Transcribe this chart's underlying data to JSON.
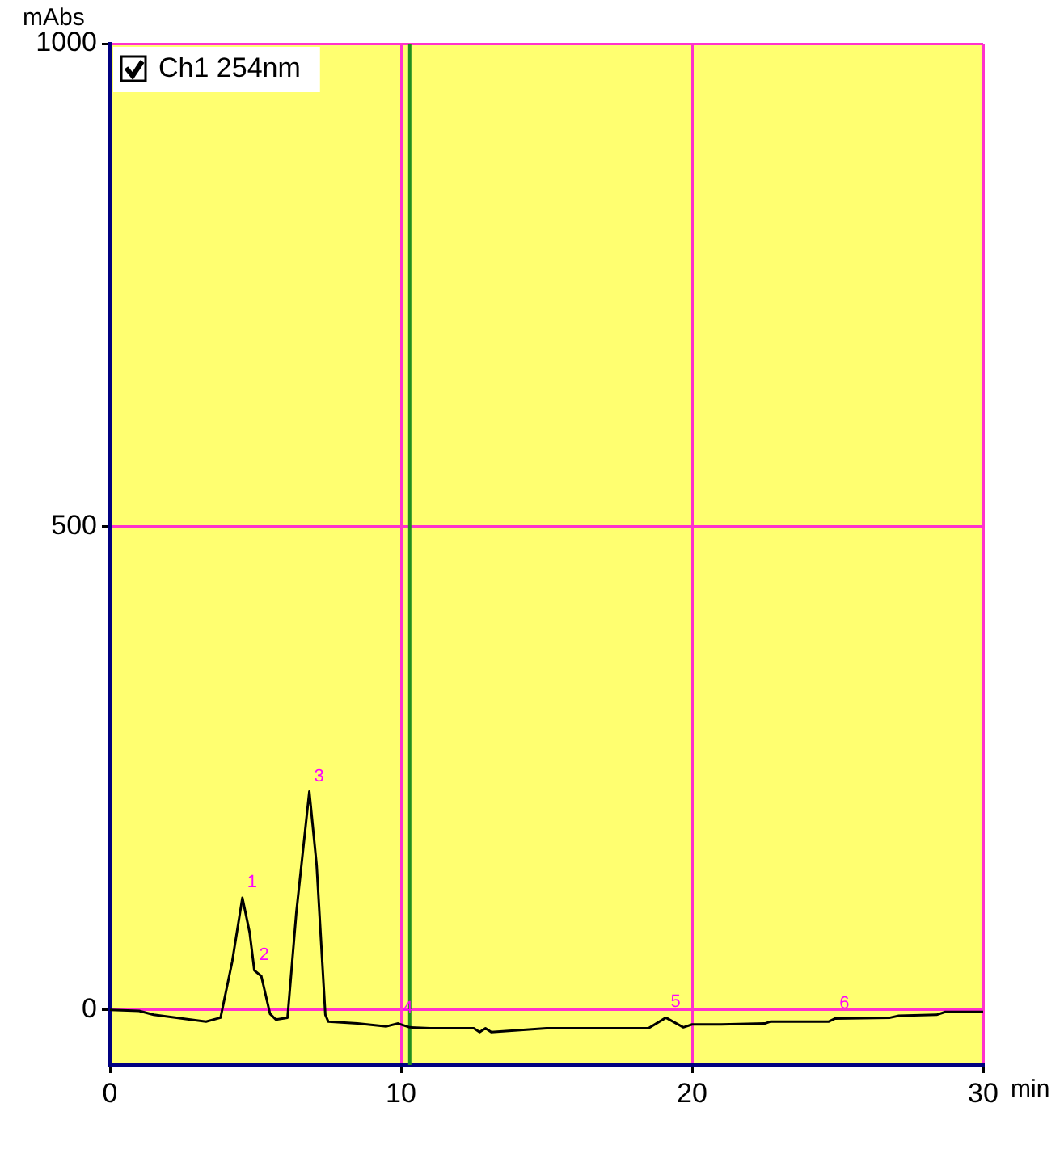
{
  "chart_data": {
    "type": "line",
    "xlabel": "min",
    "ylabel": "mAbs",
    "xlim": [
      0,
      30
    ],
    "xticks": [
      0,
      10,
      20,
      30
    ],
    "ylim": [
      -57,
      1000
    ],
    "yticks": [
      0,
      500,
      1000
    ],
    "grid": true,
    "legend": "top left",
    "marker": "none",
    "line_style": "solid",
    "ref_lines": [
      {
        "axis": "x",
        "value": 10.3,
        "color": "#209020"
      }
    ],
    "annotations": [
      {
        "text": "1",
        "x": 4.55,
        "y": 116
      },
      {
        "text": "2",
        "x": 4.96,
        "y": 41
      },
      {
        "text": "3",
        "x": 6.85,
        "y": 226
      },
      {
        "text": "4",
        "x": 9.9,
        "y": -14
      },
      {
        "text": "5",
        "x": 19.1,
        "y": -8
      },
      {
        "text": "6",
        "x": 24.9,
        "y": -9
      }
    ],
    "series": [
      {
        "name": "Ch1 254nm",
        "color": "#000000",
        "x": [
          0,
          1,
          1.5,
          2.5,
          3.3,
          3.8,
          4.2,
          4.55,
          4.8,
          4.96,
          5.2,
          5.5,
          5.7,
          6.1,
          6.4,
          6.85,
          7.1,
          7.4,
          7.5,
          8.5,
          9.5,
          9.9,
          10.3,
          11,
          12.5,
          12.7,
          12.9,
          13.1,
          15,
          18.5,
          19.1,
          19.7,
          20,
          21,
          22.5,
          22.7,
          24.7,
          24.9,
          26.8,
          27.1,
          28.4,
          28.7,
          30
        ],
        "values": [
          0,
          -1,
          -5,
          -9,
          -12,
          -8,
          50,
          116,
          80,
          41,
          35,
          -4,
          -10,
          -8,
          100,
          226,
          150,
          -5,
          -12,
          -14,
          -17,
          -14,
          -18,
          -19,
          -19,
          -23,
          -19,
          -23,
          -19,
          -19,
          -8,
          -18,
          -15,
          -15,
          -14,
          -12,
          -12,
          -9,
          -8,
          -6,
          -5,
          -2,
          -2
        ]
      }
    ]
  }
}
